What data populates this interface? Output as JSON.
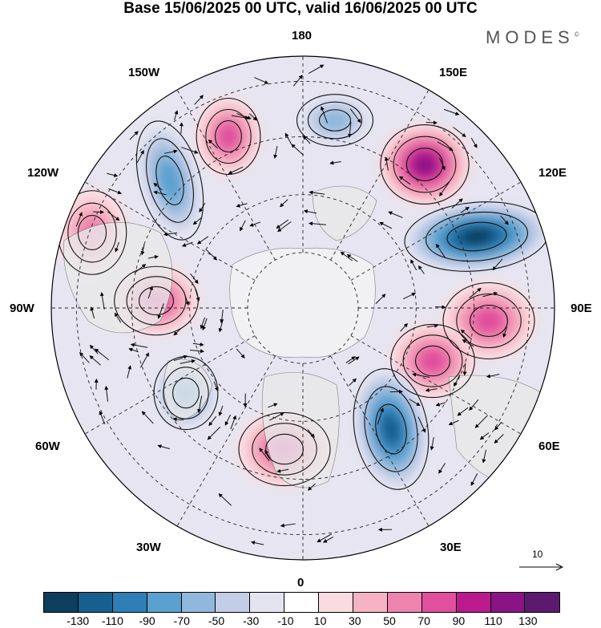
{
  "title": "Base 15/06/2025 00 UTC, valid 16/06/2025 00 UTC",
  "brand": "MODES",
  "brand_mark": "©",
  "longitude_labels": {
    "top": "180",
    "bottom": "0",
    "left": "90W",
    "right": "90E",
    "upper_left_outer": "150W",
    "upper_left_inner": "120W",
    "upper_right_outer": "150E",
    "upper_right_inner": "120E",
    "lower_left_outer": "30W",
    "lower_left_inner": "60W",
    "lower_right_outer": "30E",
    "lower_right_inner": "60E"
  },
  "vector_reference": {
    "label": "10"
  },
  "colorbar": {
    "ticks": [
      "-130",
      "-110",
      "-90",
      "-70",
      "-50",
      "-30",
      "-10",
      "10",
      "30",
      "50",
      "70",
      "90",
      "110",
      "130"
    ],
    "colors": [
      "#0d3e5e",
      "#165f8e",
      "#2d7fb5",
      "#5ba0cf",
      "#8fb8dc",
      "#c3cde6",
      "#e4e4f1",
      "#ffffff",
      "#fadcdf",
      "#f5b3c3",
      "#ee84ad",
      "#e0509d",
      "#bb1a8e",
      "#8a1486",
      "#5c1a6e"
    ]
  },
  "field_anomalies": [
    {
      "region": "east-siberia",
      "level": 110
    },
    {
      "region": "east-asia",
      "level": -130
    },
    {
      "region": "central-asia",
      "level": 70
    },
    {
      "region": "west-siberia",
      "level": 70
    },
    {
      "region": "scandinavia-russia",
      "level": -110
    },
    {
      "region": "western-europe",
      "level": 70
    },
    {
      "region": "north-atlantic",
      "level": -70
    },
    {
      "region": "eastern-canada",
      "level": 70
    },
    {
      "region": "western-canada",
      "level": 50
    },
    {
      "region": "gulf-of-alaska",
      "level": -70
    },
    {
      "region": "bering-sea",
      "level": 70
    },
    {
      "region": "north-pacific",
      "level": -50
    }
  ]
}
